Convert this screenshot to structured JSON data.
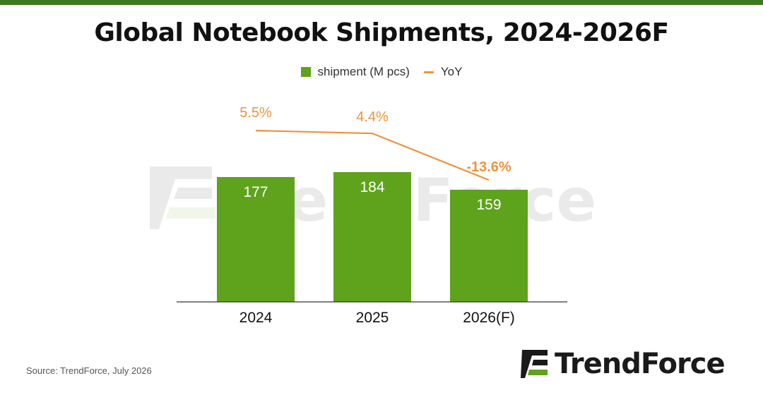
{
  "title": "Global Notebook Shipments, 2024-2026F",
  "source": "Source: TrendForce, July 2026",
  "brand": "TrendForce",
  "colors": {
    "top_bar": "#3c7a1e",
    "bar": "#5ea31b",
    "line": "#f0923a",
    "bar_label": "#ffffff",
    "watermark": "#d9d9d9"
  },
  "legend": [
    {
      "label": "shipment (M pcs)",
      "kind": "bar"
    },
    {
      "label": "YoY",
      "kind": "line"
    }
  ],
  "chart_data": {
    "type": "bar",
    "categories": [
      "2024",
      "2025",
      "2026(F)"
    ],
    "series": [
      {
        "name": "shipment (M pcs)",
        "type": "bar",
        "values": [
          177,
          184,
          159
        ],
        "labels": [
          "177",
          "184",
          "159"
        ]
      },
      {
        "name": "YoY",
        "type": "line",
        "values": [
          5.5,
          4.4,
          -13.6
        ],
        "labels": [
          "5.5%",
          "4.4%",
          "-13.6%"
        ]
      }
    ],
    "legend_position": "top-center",
    "grid": false
  }
}
